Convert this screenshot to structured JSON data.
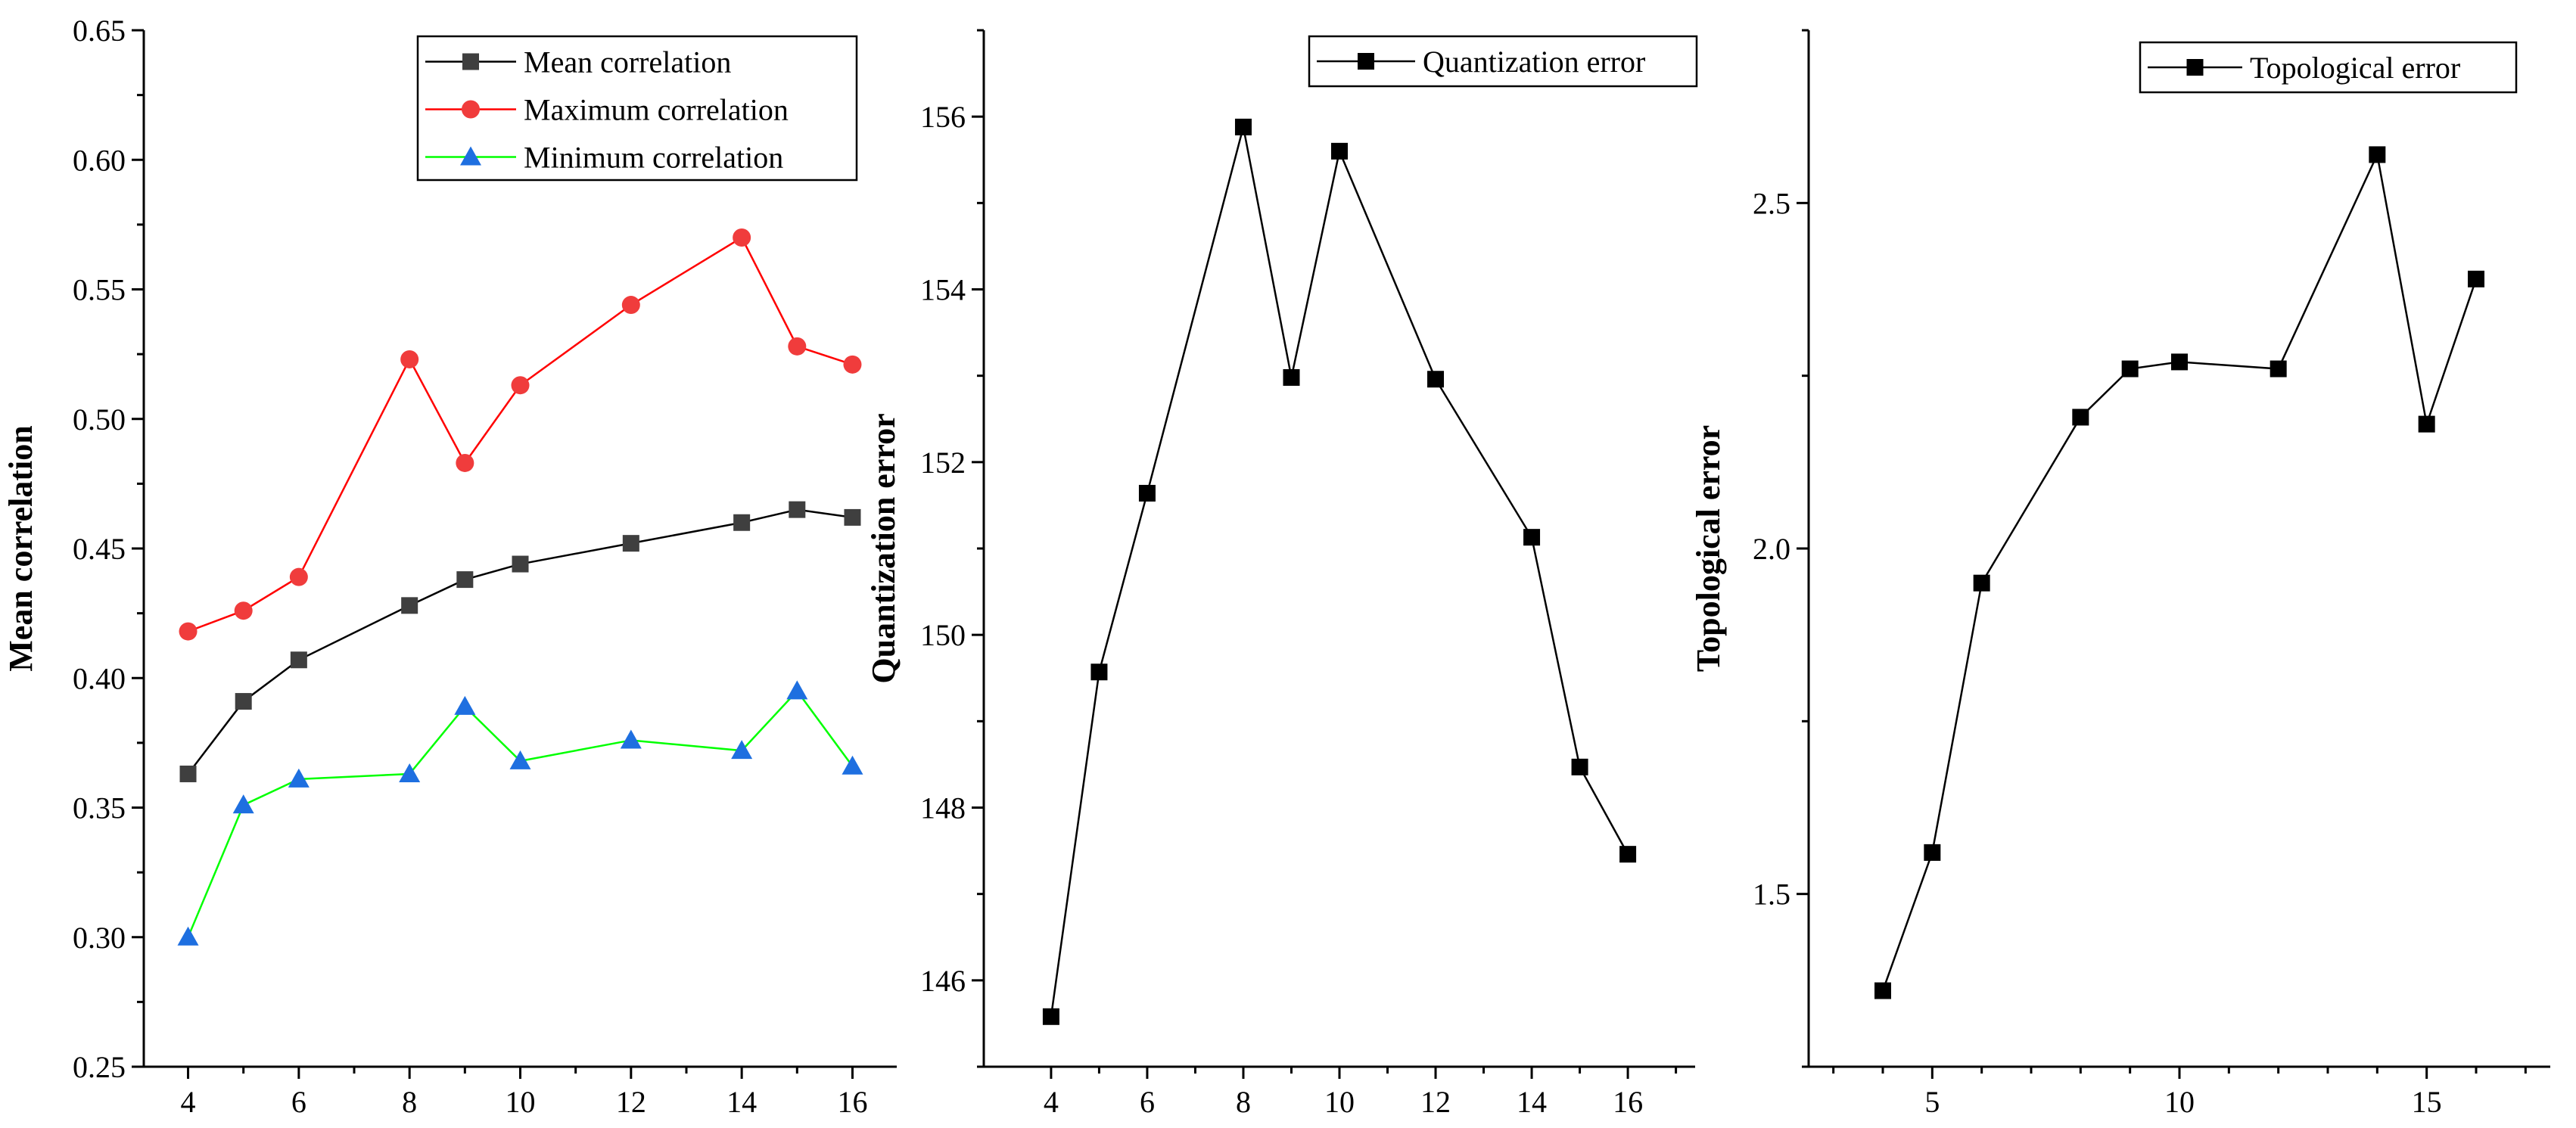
{
  "chart_data": [
    {
      "type": "line",
      "title": "",
      "xlabel": "",
      "ylabel": "Mean correlation",
      "xlim": [
        3.2,
        16.8
      ],
      "ylim": [
        0.25,
        0.65
      ],
      "xticks": [
        4,
        6,
        8,
        10,
        12,
        14,
        16
      ],
      "xtick_labels": [
        "4",
        "6",
        "8",
        "10",
        "12",
        "14",
        "16"
      ],
      "yticks": [
        0.25,
        0.3,
        0.35,
        0.4,
        0.45,
        0.5,
        0.55,
        0.6,
        0.65
      ],
      "ytick_labels": [
        "0.25",
        "0.30",
        "0.35",
        "0.40",
        "0.45",
        "0.50",
        "0.55",
        "0.60",
        "0.65"
      ],
      "legend_position": "top-right",
      "x": [
        4,
        5,
        6,
        8,
        9,
        10,
        12,
        14,
        15,
        16
      ],
      "series": [
        {
          "name": "Mean correlation",
          "color": "#3f3f3f",
          "line_color": "#000000",
          "marker": "square",
          "values": [
            0.363,
            0.391,
            0.407,
            0.428,
            0.438,
            0.444,
            0.452,
            0.46,
            0.465,
            0.462
          ]
        },
        {
          "name": "Maximum correlation",
          "color": "#f03c3c",
          "line_color": "#ff0000",
          "marker": "circle",
          "values": [
            0.418,
            0.426,
            0.439,
            0.523,
            0.483,
            0.513,
            0.544,
            0.57,
            0.528,
            0.521
          ]
        },
        {
          "name": "Minimum correlation",
          "color": "#1e6fe0",
          "line_color": "#00ff00",
          "marker": "triangle",
          "values": [
            0.3,
            0.351,
            0.361,
            0.363,
            0.389,
            0.368,
            0.376,
            0.372,
            0.395,
            0.366
          ]
        }
      ]
    },
    {
      "type": "line",
      "title": "",
      "xlabel": "",
      "ylabel": "Quantization error",
      "xlim": [
        2.6,
        17.4
      ],
      "ylim": [
        145.0,
        157.0
      ],
      "xticks": [
        4,
        6,
        8,
        10,
        12,
        14,
        16
      ],
      "xtick_labels": [
        "4",
        "6",
        "8",
        "10",
        "12",
        "14",
        "16"
      ],
      "yticks": [
        146,
        148,
        150,
        152,
        154,
        156
      ],
      "ytick_labels": [
        "146",
        "148",
        "150",
        "152",
        "154",
        "156"
      ],
      "legend_position": "top-right",
      "x": [
        4,
        5,
        6,
        8,
        9,
        10,
        12,
        14,
        15,
        16
      ],
      "series": [
        {
          "name": "Quantization error",
          "color": "#000000",
          "line_color": "#000000",
          "marker": "square",
          "values": [
            145.58,
            149.57,
            151.64,
            155.88,
            152.98,
            155.6,
            152.96,
            151.13,
            148.47,
            147.46
          ]
        }
      ]
    },
    {
      "type": "line",
      "title": "",
      "xlabel": "",
      "ylabel": "Topological error",
      "xlim": [
        2.5,
        17.5
      ],
      "ylim": [
        1.25,
        2.75
      ],
      "xticks": [
        5,
        10,
        15
      ],
      "xtick_labels": [
        "5",
        "10",
        "15"
      ],
      "yticks": [
        1.5,
        2.0,
        2.5
      ],
      "ytick_labels": [
        "1.5",
        "2.0",
        "2.5"
      ],
      "legend_position": "top-right",
      "x": [
        4,
        5,
        6,
        8,
        9,
        10,
        12,
        14,
        15,
        16
      ],
      "series": [
        {
          "name": "Topological error",
          "color": "#000000",
          "line_color": "#000000",
          "marker": "square",
          "values": [
            1.36,
            1.56,
            1.95,
            2.19,
            2.26,
            2.27,
            2.26,
            2.57,
            2.18,
            2.39
          ]
        }
      ]
    }
  ]
}
